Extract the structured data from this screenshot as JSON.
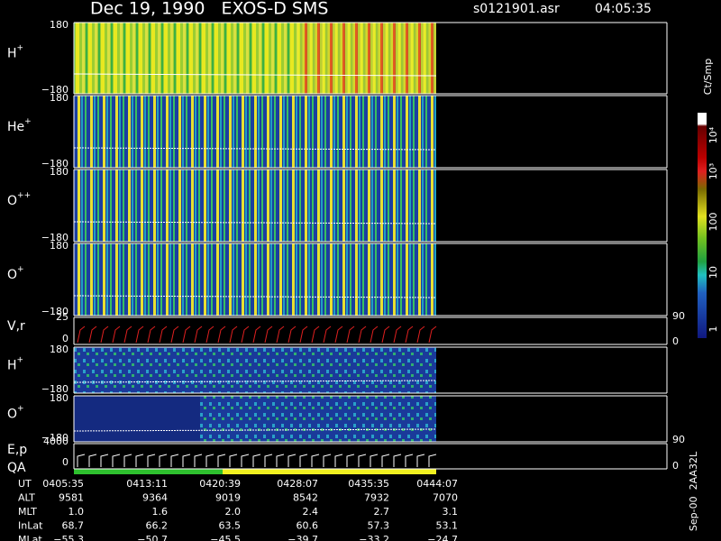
{
  "header": {
    "title": "Dec 19, 1990   EXOS-D SMS",
    "file": "s0121901.asr",
    "time": "04:05:35"
  },
  "panels": [
    {
      "label": "H",
      "sup": "+",
      "ymax": "180",
      "ymin": "−180"
    },
    {
      "label": "He",
      "sup": "+",
      "ymax": "180",
      "ymin": "−180"
    },
    {
      "label": "O",
      "sup": "++",
      "ymax": "180",
      "ymin": "−180"
    },
    {
      "label": "O",
      "sup": "+",
      "ymax": "180",
      "ymin": "−180"
    }
  ],
  "vr": {
    "label": "V,r",
    "left_top": "25",
    "left_bottom": "0",
    "right_top": "90",
    "right_bottom": "0"
  },
  "lower_panels": [
    {
      "label": "H",
      "sup": "+",
      "ymax": "180",
      "ymin": "−180"
    },
    {
      "label": "O",
      "sup": "+",
      "ymax": "180",
      "ymin": "−180"
    }
  ],
  "ep": {
    "label": "E,p",
    "label2": "QA",
    "left_top": "4000",
    "left_bottom": "0",
    "right_top": "90",
    "right_bottom": "0"
  },
  "colorbar": {
    "unit": "Ct/Smp",
    "labels": [
      "10⁴",
      "10³",
      "100",
      "10",
      "1"
    ]
  },
  "table": {
    "rows": [
      [
        "UT",
        "0405:35",
        "0413:11",
        "0420:39",
        "0428:07",
        "0435:35",
        "0444:07"
      ],
      [
        "ALT",
        "9581",
        "9364",
        "9019",
        "8542",
        "7932",
        "7070"
      ],
      [
        "MLT",
        "1.0",
        "1.6",
        "2.0",
        "2.4",
        "2.7",
        "3.1"
      ],
      [
        "InLat",
        "68.7",
        "66.2",
        "63.5",
        "60.6",
        "57.3",
        "53.1"
      ],
      [
        "MLat",
        "−55.3",
        "−50.7",
        "−45.5",
        "−39.7",
        "−33.2",
        "−24.7"
      ]
    ]
  },
  "footer": "Sep-00  2AA32L"
}
